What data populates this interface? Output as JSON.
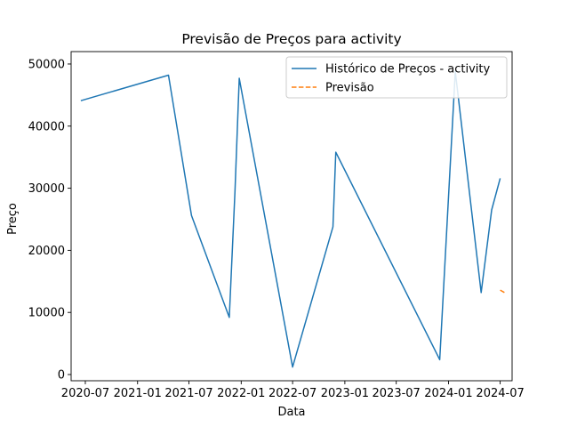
{
  "chart_data": {
    "type": "line",
    "title": "Previsão de Preços para activity",
    "xlabel": "Data",
    "ylabel": "Preço",
    "x_ticks": [
      "2020-07",
      "2021-01",
      "2021-07",
      "2022-01",
      "2022-07",
      "2023-01",
      "2023-07",
      "2024-01",
      "2024-07"
    ],
    "y_ticks": [
      0,
      10000,
      20000,
      30000,
      40000,
      50000
    ],
    "xlim": [
      "2020-05-12",
      "2024-08-12"
    ],
    "ylim": [
      -1000,
      52000
    ],
    "grid": false,
    "legend_position": "top-right",
    "series": [
      {
        "name": "Histórico de Preços - activity",
        "color": "#1f77b4",
        "style": "solid",
        "points": [
          [
            "2020-06-15",
            44100
          ],
          [
            "2021-04-20",
            48200
          ],
          [
            "2021-07-10",
            25600
          ],
          [
            "2021-11-20",
            9200
          ],
          [
            "2021-12-10",
            29500
          ],
          [
            "2021-12-25",
            47700
          ],
          [
            "2022-07-01",
            1200
          ],
          [
            "2022-11-20",
            23800
          ],
          [
            "2022-11-30",
            35800
          ],
          [
            "2023-12-01",
            2400
          ],
          [
            "2024-01-25",
            48800
          ],
          [
            "2024-04-25",
            13200
          ],
          [
            "2024-06-01",
            26500
          ],
          [
            "2024-07-01",
            31600
          ]
        ]
      },
      {
        "name": "Previsão",
        "color": "#ff7f0e",
        "style": "dashed",
        "points": [
          [
            "2024-07-01",
            13600
          ],
          [
            "2024-07-20",
            13100
          ]
        ]
      }
    ]
  }
}
